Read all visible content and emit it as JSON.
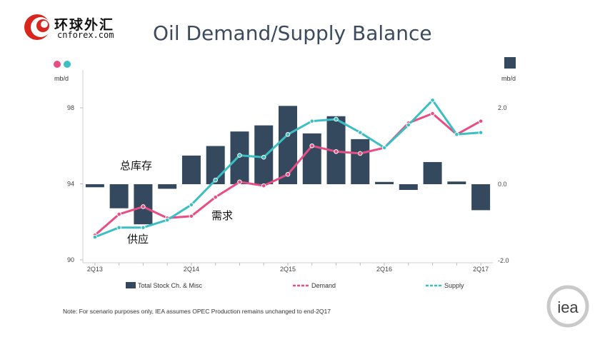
{
  "header": {
    "logo_cn": "环球外汇",
    "logo_en": "cnforex.com",
    "title": "Oil Demand/Supply Balance"
  },
  "footer": {
    "note": "Note: For scenario purposes only, IEA assumes OPEC Production remains unchanged to end-2Q17",
    "iea_logo": "iea"
  },
  "annotations": {
    "stock": "总库存",
    "demand": "需求",
    "supply": "供应"
  },
  "colors": {
    "bars": "#34495e",
    "demand": "#e84d84",
    "supply": "#3bbfc4",
    "title": "#3b4a5f"
  },
  "chart_data": {
    "type": "bar+line",
    "categories": [
      "2Q13",
      "3Q13",
      "4Q13",
      "1Q14",
      "2Q14",
      "3Q14",
      "4Q14",
      "1Q15",
      "2Q15",
      "3Q15",
      "4Q15",
      "1Q16",
      "2Q16",
      "3Q16",
      "4Q16",
      "1Q17",
      "2Q17"
    ],
    "x_tick_labels": [
      "2Q13",
      "2Q14",
      "2Q15",
      "2Q16",
      "2Q17"
    ],
    "left_axis": {
      "unit": "mb/d",
      "ticks": [
        90,
        94,
        98
      ],
      "range": [
        90,
        98.7
      ]
    },
    "right_axis": {
      "unit": "mb/d",
      "ticks": [
        -2.0,
        0.0,
        2.0
      ],
      "range": [
        -2.0,
        2.0
      ]
    },
    "series": [
      {
        "name": "Total Stock Ch. & Misc",
        "type": "bar",
        "axis": "right",
        "values": [
          -0.08,
          -0.63,
          -1.05,
          -0.12,
          0.75,
          1.0,
          1.38,
          1.54,
          2.05,
          1.33,
          1.78,
          1.18,
          0.06,
          -0.15,
          0.58,
          0.07,
          -0.68
        ]
      },
      {
        "name": "Demand",
        "type": "line",
        "axis": "left",
        "values": [
          91.3,
          92.4,
          92.8,
          92.2,
          92.3,
          93.3,
          94.1,
          93.9,
          94.5,
          96.0,
          95.7,
          95.6,
          95.9,
          97.2,
          97.7,
          96.6,
          97.3
        ]
      },
      {
        "name": "Supply",
        "type": "line",
        "axis": "left",
        "values": [
          91.2,
          91.7,
          91.7,
          92.1,
          92.9,
          94.2,
          95.5,
          95.4,
          96.6,
          97.3,
          97.4,
          96.7,
          95.9,
          97.1,
          98.4,
          96.6,
          96.7
        ]
      }
    ],
    "legend": [
      "Total Stock Ch. & Misc",
      "Demand",
      "Supply"
    ],
    "legend_position": "bottom",
    "grid": false
  }
}
